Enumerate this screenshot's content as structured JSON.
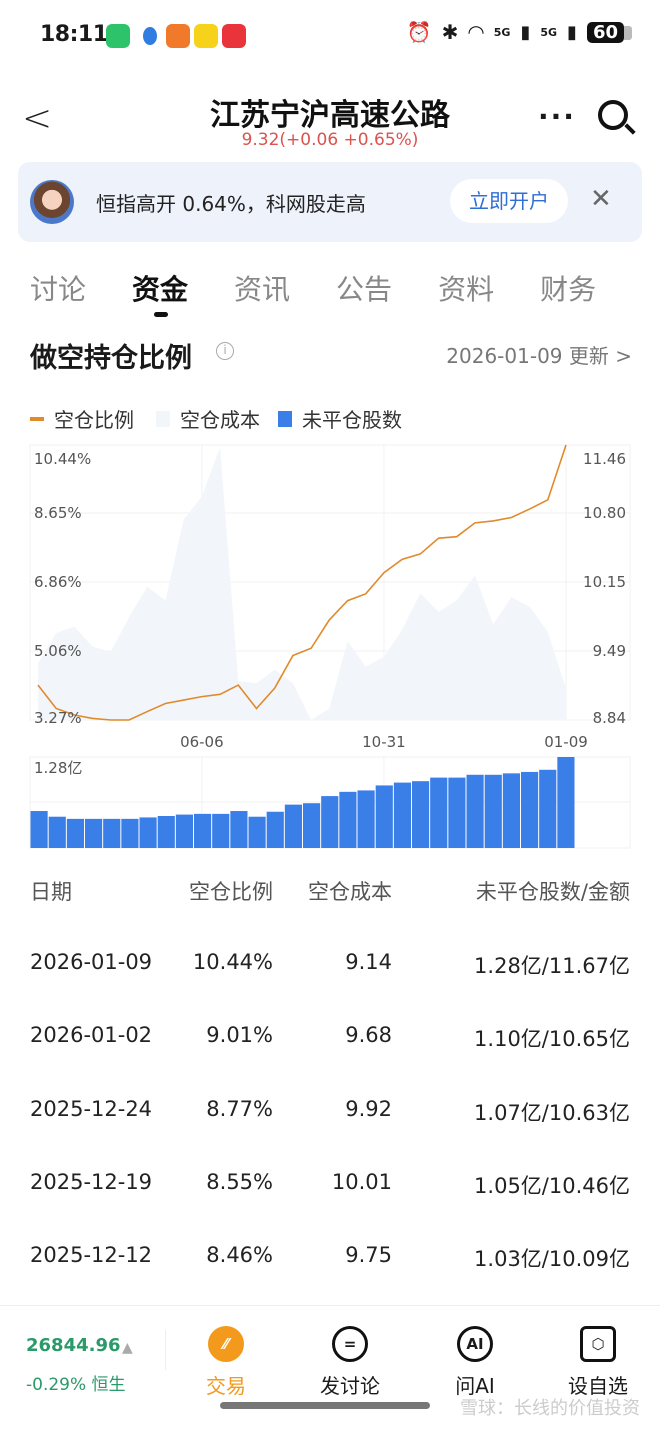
{
  "status_bar": {
    "time": "18:11",
    "battery": "60",
    "signal1": "5G",
    "signal2": "5G"
  },
  "header": {
    "title": "江苏宁沪高速公路",
    "quote": "9.32(+0.06 +0.65%)"
  },
  "banner": {
    "text": "恒指高开 0.64%，科网股走高",
    "button": "立即开户"
  },
  "tabs": [
    {
      "label": "讨论"
    },
    {
      "label": "资金"
    },
    {
      "label": "资讯"
    },
    {
      "label": "公告"
    },
    {
      "label": "资料"
    },
    {
      "label": "财务"
    }
  ],
  "section": {
    "title": "做空持仓比例",
    "updated": "2026-01-09 更新"
  },
  "colors": {
    "ratio": "#e08a2c",
    "cost": "#f2f6fb",
    "shares": "#3a7ee8",
    "up": "#d9534f",
    "hsi": "#2a9a6a",
    "trade": "#f39a1c"
  },
  "chart_data": {
    "type": "line",
    "legend": [
      "空仓比例",
      "空仓成本",
      "未平仓股数"
    ],
    "left_axis": {
      "ticks": [
        "10.44%",
        "8.65%",
        "6.86%",
        "5.06%",
        "3.27%"
      ],
      "range": [
        3.27,
        10.44
      ]
    },
    "right_axis": {
      "ticks": [
        "11.46",
        "10.80",
        "10.15",
        "9.49",
        "8.84"
      ],
      "range": [
        8.84,
        11.46
      ]
    },
    "x_ticks": [
      {
        "label": "06-06",
        "index": 9
      },
      {
        "label": "10-31",
        "index": 19
      },
      {
        "label": "01-09",
        "index": 29
      }
    ],
    "series": [
      {
        "name": "空仓比例",
        "type": "line",
        "axis": "left",
        "values": [
          4.18,
          3.57,
          3.4,
          3.31,
          3.27,
          3.27,
          3.49,
          3.7,
          3.79,
          3.88,
          3.94,
          4.18,
          3.57,
          4.1,
          4.95,
          5.14,
          5.88,
          6.38,
          6.56,
          7.11,
          7.46,
          7.6,
          8.01,
          8.05,
          8.41,
          8.46,
          8.55,
          8.77,
          9.01,
          10.44
        ]
      },
      {
        "name": "空仓成本",
        "type": "area",
        "axis": "right",
        "values": [
          9.38,
          9.67,
          9.73,
          9.54,
          9.49,
          9.82,
          10.11,
          9.98,
          10.75,
          10.97,
          11.44,
          9.21,
          9.19,
          9.32,
          9.19,
          8.84,
          8.95,
          9.59,
          9.35,
          9.44,
          9.7,
          10.05,
          9.87,
          9.98,
          10.22,
          9.75,
          10.01,
          9.92,
          9.68,
          9.14
        ]
      },
      {
        "name": "未平仓股数",
        "type": "bar",
        "unit": "亿",
        "max_label": "1.28亿",
        "max": 1.28,
        "values": [
          0.52,
          0.44,
          0.41,
          0.41,
          0.41,
          0.41,
          0.43,
          0.45,
          0.47,
          0.48,
          0.48,
          0.52,
          0.44,
          0.51,
          0.61,
          0.63,
          0.73,
          0.79,
          0.81,
          0.88,
          0.92,
          0.94,
          0.99,
          0.99,
          1.03,
          1.03,
          1.05,
          1.07,
          1.1,
          1.28
        ]
      }
    ]
  },
  "table": {
    "headers": [
      "日期",
      "空仓比例",
      "空仓成本",
      "未平仓股数/金额"
    ],
    "rows": [
      [
        "2026-01-09",
        "10.44%",
        "9.14",
        "1.28亿/11.67亿"
      ],
      [
        "2026-01-02",
        "9.01%",
        "9.68",
        "1.10亿/10.65亿"
      ],
      [
        "2025-12-24",
        "8.77%",
        "9.92",
        "1.07亿/10.63亿"
      ],
      [
        "2025-12-19",
        "8.55%",
        "10.01",
        "1.05亿/10.46亿"
      ],
      [
        "2025-12-12",
        "8.46%",
        "9.75",
        "1.03亿/10.09亿"
      ]
    ]
  },
  "footer": {
    "index_value": "26844.96",
    "index_change": "-0.29% 恒生",
    "nav": [
      "交易",
      "发讨论",
      "问AI",
      "设自选"
    ],
    "ai_icon": "AI",
    "watermark": "雪球：长线的价值投资"
  }
}
